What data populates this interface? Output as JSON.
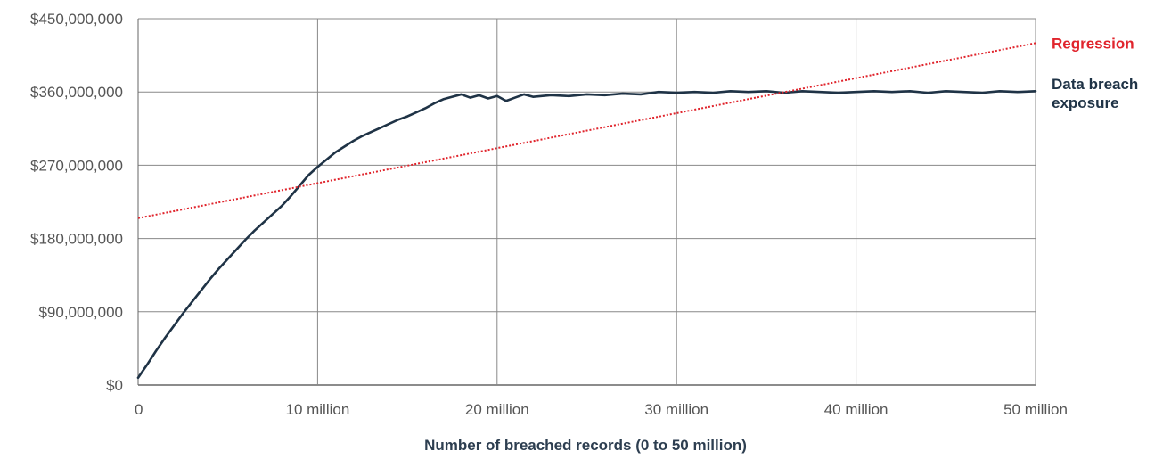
{
  "chart_data": {
    "type": "line",
    "title": "",
    "xlabel": "Number of breached records (0 to 50 million)",
    "ylabel": "",
    "xlim": [
      0,
      50000000
    ],
    "ylim": [
      0,
      450000000
    ],
    "x_ticks": [
      {
        "value": 0,
        "label": "0"
      },
      {
        "value": 10000000,
        "label": "10 million"
      },
      {
        "value": 20000000,
        "label": "20 million"
      },
      {
        "value": 30000000,
        "label": "30 million"
      },
      {
        "value": 40000000,
        "label": "40 million"
      },
      {
        "value": 50000000,
        "label": "50 million"
      }
    ],
    "y_ticks": [
      {
        "value": 0,
        "label": "$0"
      },
      {
        "value": 90000000,
        "label": "$90,000,000"
      },
      {
        "value": 180000000,
        "label": "$180,000,000"
      },
      {
        "value": 270000000,
        "label": "$270,000,000"
      },
      {
        "value": 360000000,
        "label": "$360,000,000"
      },
      {
        "value": 450000000,
        "label": "$450,000,000"
      }
    ],
    "grid": true,
    "legend_placement": "right",
    "series": [
      {
        "name": "Data breach exposure",
        "color": "#1f3346",
        "style": "solid",
        "points": [
          [
            0,
            9000000
          ],
          [
            500000,
            25000000
          ],
          [
            1000000,
            42000000
          ],
          [
            1500000,
            58000000
          ],
          [
            2000000,
            73000000
          ],
          [
            2500000,
            88000000
          ],
          [
            3000000,
            102000000
          ],
          [
            3500000,
            116000000
          ],
          [
            4000000,
            130000000
          ],
          [
            4500000,
            143000000
          ],
          [
            5000000,
            155000000
          ],
          [
            5500000,
            167000000
          ],
          [
            6000000,
            179000000
          ],
          [
            6500000,
            190000000
          ],
          [
            7000000,
            200000000
          ],
          [
            7500000,
            210000000
          ],
          [
            8000000,
            220000000
          ],
          [
            8500000,
            232000000
          ],
          [
            9000000,
            245000000
          ],
          [
            9500000,
            258000000
          ],
          [
            10000000,
            268000000
          ],
          [
            10500000,
            277000000
          ],
          [
            11000000,
            286000000
          ],
          [
            11500000,
            293000000
          ],
          [
            12000000,
            300000000
          ],
          [
            12500000,
            306000000
          ],
          [
            13000000,
            311000000
          ],
          [
            13500000,
            316000000
          ],
          [
            14000000,
            321000000
          ],
          [
            14500000,
            326000000
          ],
          [
            15000000,
            330000000
          ],
          [
            15500000,
            335000000
          ],
          [
            16000000,
            340000000
          ],
          [
            16500000,
            346000000
          ],
          [
            17000000,
            351000000
          ],
          [
            17500000,
            354000000
          ],
          [
            18000000,
            357000000
          ],
          [
            18500000,
            353000000
          ],
          [
            19000000,
            356000000
          ],
          [
            19500000,
            352000000
          ],
          [
            20000000,
            355000000
          ],
          [
            20500000,
            349000000
          ],
          [
            21000000,
            353000000
          ],
          [
            21500000,
            357000000
          ],
          [
            22000000,
            354000000
          ],
          [
            23000000,
            356000000
          ],
          [
            24000000,
            355000000
          ],
          [
            25000000,
            357000000
          ],
          [
            26000000,
            356000000
          ],
          [
            27000000,
            358000000
          ],
          [
            28000000,
            357000000
          ],
          [
            29000000,
            360000000
          ],
          [
            30000000,
            359000000
          ],
          [
            31000000,
            360000000
          ],
          [
            32000000,
            359000000
          ],
          [
            33000000,
            361000000
          ],
          [
            34000000,
            360000000
          ],
          [
            35000000,
            361000000
          ],
          [
            36000000,
            359000000
          ],
          [
            37000000,
            361000000
          ],
          [
            38000000,
            360000000
          ],
          [
            39000000,
            359000000
          ],
          [
            40000000,
            360000000
          ],
          [
            41000000,
            361000000
          ],
          [
            42000000,
            360000000
          ],
          [
            43000000,
            361000000
          ],
          [
            44000000,
            359000000
          ],
          [
            45000000,
            361000000
          ],
          [
            46000000,
            360000000
          ],
          [
            47000000,
            359000000
          ],
          [
            48000000,
            361000000
          ],
          [
            49000000,
            360000000
          ],
          [
            50000000,
            361000000
          ]
        ]
      },
      {
        "name": "Regression",
        "color": "#e0242c",
        "style": "dotted",
        "points": [
          [
            0,
            205000000
          ],
          [
            50000000,
            420000000
          ]
        ]
      }
    ],
    "legend": [
      {
        "lines": [
          "Regression"
        ],
        "color": "#e0242c",
        "anchor_value": 420000000
      },
      {
        "lines": [
          "Data breach",
          "exposure"
        ],
        "color": "#1f3346",
        "anchor_value": 361000000
      }
    ]
  }
}
